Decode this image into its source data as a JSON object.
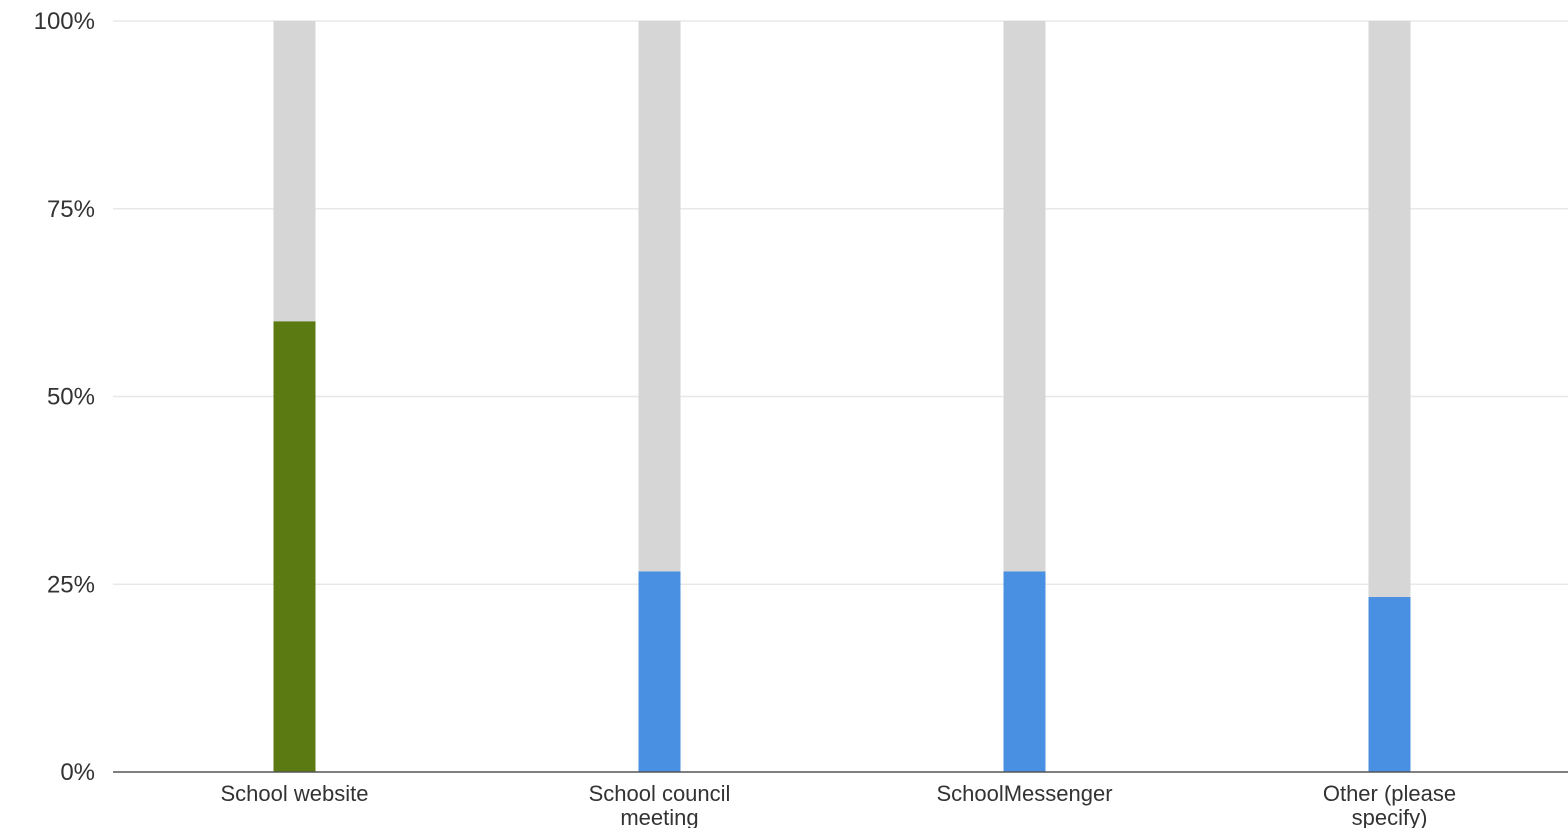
{
  "chart_data": {
    "type": "bar",
    "categories": [
      [
        "School website"
      ],
      [
        "School council",
        "meeting"
      ],
      [
        "SchoolMessenger"
      ],
      [
        "Other (please",
        "specify)"
      ]
    ],
    "values": [
      60,
      26.7,
      26.7,
      23.3
    ],
    "highlight_index": 0,
    "ylim": [
      0,
      100
    ],
    "yticks": [
      0,
      25,
      50,
      75,
      100
    ],
    "ytick_labels": [
      "0%",
      "25%",
      "50%",
      "75%",
      "100%"
    ],
    "grid": true,
    "legend": "none",
    "title": "",
    "xlabel": "",
    "ylabel": ""
  },
  "colors": {
    "highlight": "#5b7a12",
    "default": "#4a90e2",
    "remainder": "#d6d6d6",
    "grid": "#e8e8e8",
    "axis": "#555555"
  }
}
